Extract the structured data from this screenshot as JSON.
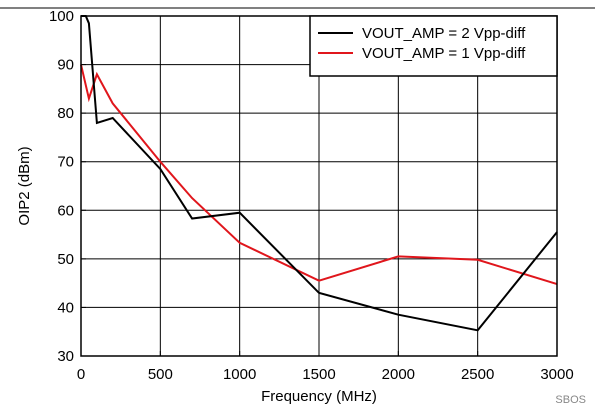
{
  "chart_data": {
    "type": "line",
    "xlabel": "Frequency (MHz)",
    "ylabel": "OIP2 (dBm)",
    "xlim": [
      0,
      3000
    ],
    "ylim": [
      30,
      100
    ],
    "x_ticks": [
      0,
      500,
      1000,
      1500,
      2000,
      2500,
      3000
    ],
    "y_ticks": [
      30,
      40,
      50,
      60,
      70,
      80,
      90,
      100
    ],
    "x_tick_labels": [
      "0",
      "500",
      "1000",
      "1500",
      "2000",
      "2500",
      "3000"
    ],
    "y_tick_labels": [
      "30",
      "40",
      "50",
      "60",
      "70",
      "80",
      "90",
      "100"
    ],
    "grid": true,
    "legend_position": "top-right",
    "series": [
      {
        "name": "VOUT_AMP = 2 Vpp-diff",
        "color": "#000000",
        "x": [
          0,
          30,
          50,
          100,
          200,
          500,
          700,
          1000,
          1500,
          2000,
          2500,
          3000
        ],
        "y": [
          100,
          100,
          98.5,
          78,
          79,
          68.5,
          58.3,
          59.5,
          43,
          38.5,
          35.3,
          55.5
        ]
      },
      {
        "name": "VOUT_AMP = 1 Vpp-diff",
        "color": "#e0161c",
        "x": [
          0,
          50,
          100,
          200,
          500,
          700,
          1000,
          1500,
          2000,
          2500,
          3000
        ],
        "y": [
          90,
          83,
          88,
          82,
          70,
          62.5,
          53.3,
          45.5,
          50.5,
          49.8,
          44.8
        ]
      }
    ],
    "annotation": "SBOS"
  }
}
